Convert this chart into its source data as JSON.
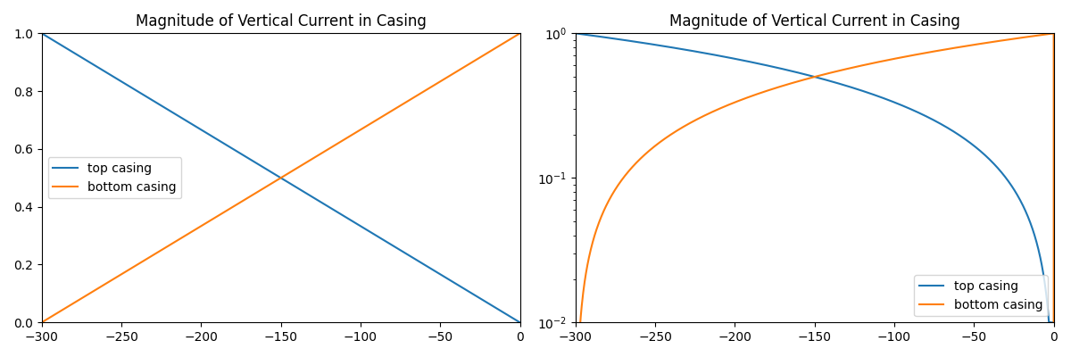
{
  "title": "Magnitude of Vertical Current in Casing",
  "x_min": -300,
  "x_max": 0,
  "n_points": 1000,
  "ylim_linear": [
    0.0,
    1.0
  ],
  "ylim_log": [
    0.01,
    1.0
  ],
  "legend_labels": [
    "top casing",
    "bottom casing"
  ],
  "line_color_top": "#1f77b4",
  "line_color_bottom": "#ff7f0e",
  "figsize": [
    12,
    4
  ],
  "dpi": 100,
  "legend_loc_left": "center left",
  "legend_loc_right": "lower right"
}
